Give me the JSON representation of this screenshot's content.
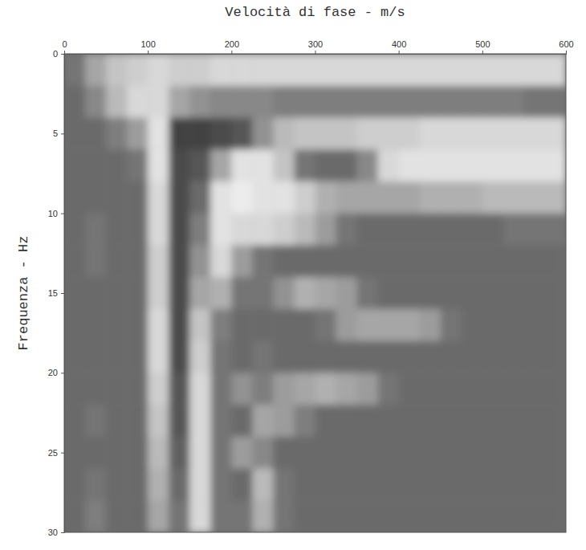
{
  "chart_data": {
    "type": "heatmap",
    "x_label": "Velocità di fase - m/s",
    "y_label": "Frequenza - Hz",
    "xlim": [
      0,
      600
    ],
    "ylim": [
      0,
      30
    ],
    "xticks": [
      0,
      100,
      200,
      300,
      400,
      500,
      600
    ],
    "yticks": [
      0,
      5,
      10,
      15,
      20,
      25,
      30
    ],
    "x_bins": [
      0,
      25,
      50,
      75,
      100,
      125,
      150,
      175,
      200,
      225,
      250,
      275,
      300,
      325,
      350,
      375,
      400,
      425,
      450,
      475,
      500,
      525,
      550,
      575,
      600
    ],
    "y_bins": [
      0,
      2,
      4,
      6,
      8,
      10,
      12,
      14,
      16,
      18,
      20,
      22,
      24,
      26,
      28,
      30
    ],
    "values": [
      [
        0.35,
        0.6,
        0.75,
        0.8,
        0.85,
        0.8,
        0.8,
        0.85,
        0.85,
        0.85,
        0.85,
        0.85,
        0.85,
        0.85,
        0.85,
        0.85,
        0.85,
        0.85,
        0.85,
        0.85,
        0.85,
        0.85,
        0.85,
        0.85
      ],
      [
        0.3,
        0.45,
        0.7,
        0.85,
        0.85,
        0.6,
        0.5,
        0.45,
        0.45,
        0.45,
        0.4,
        0.4,
        0.4,
        0.4,
        0.4,
        0.4,
        0.4,
        0.4,
        0.4,
        0.4,
        0.4,
        0.4,
        0.35,
        0.35
      ],
      [
        0.3,
        0.3,
        0.4,
        0.55,
        0.9,
        0.1,
        0.1,
        0.15,
        0.2,
        0.5,
        0.7,
        0.75,
        0.75,
        0.75,
        0.8,
        0.8,
        0.8,
        0.85,
        0.85,
        0.85,
        0.85,
        0.85,
        0.85,
        0.85
      ],
      [
        0.3,
        0.3,
        0.3,
        0.35,
        0.9,
        0.15,
        0.2,
        0.6,
        0.9,
        0.9,
        0.75,
        0.35,
        0.3,
        0.3,
        0.45,
        0.85,
        0.9,
        0.9,
        0.9,
        0.9,
        0.9,
        0.9,
        0.9,
        0.9
      ],
      [
        0.3,
        0.3,
        0.3,
        0.3,
        0.85,
        0.15,
        0.3,
        0.9,
        0.95,
        0.9,
        0.9,
        0.8,
        0.65,
        0.6,
        0.6,
        0.6,
        0.6,
        0.65,
        0.65,
        0.65,
        0.7,
        0.7,
        0.7,
        0.7
      ],
      [
        0.3,
        0.35,
        0.3,
        0.3,
        0.85,
        0.15,
        0.4,
        0.9,
        0.85,
        0.85,
        0.8,
        0.7,
        0.55,
        0.35,
        0.3,
        0.3,
        0.3,
        0.3,
        0.3,
        0.3,
        0.3,
        0.35,
        0.35,
        0.35
      ],
      [
        0.3,
        0.35,
        0.3,
        0.3,
        0.8,
        0.15,
        0.5,
        0.85,
        0.55,
        0.35,
        0.3,
        0.3,
        0.3,
        0.3,
        0.3,
        0.3,
        0.3,
        0.3,
        0.3,
        0.3,
        0.3,
        0.3,
        0.3,
        0.3
      ],
      [
        0.3,
        0.3,
        0.3,
        0.3,
        0.8,
        0.15,
        0.6,
        0.65,
        0.35,
        0.35,
        0.5,
        0.65,
        0.6,
        0.55,
        0.35,
        0.3,
        0.3,
        0.3,
        0.3,
        0.3,
        0.3,
        0.3,
        0.3,
        0.3
      ],
      [
        0.3,
        0.3,
        0.3,
        0.3,
        0.85,
        0.15,
        0.75,
        0.4,
        0.3,
        0.3,
        0.3,
        0.3,
        0.35,
        0.55,
        0.6,
        0.6,
        0.6,
        0.55,
        0.35,
        0.3,
        0.3,
        0.3,
        0.3,
        0.3
      ],
      [
        0.3,
        0.3,
        0.3,
        0.3,
        0.85,
        0.15,
        0.8,
        0.35,
        0.3,
        0.35,
        0.3,
        0.3,
        0.3,
        0.3,
        0.3,
        0.3,
        0.3,
        0.3,
        0.3,
        0.3,
        0.3,
        0.3,
        0.3,
        0.3
      ],
      [
        0.3,
        0.3,
        0.3,
        0.3,
        0.8,
        0.2,
        0.85,
        0.35,
        0.5,
        0.4,
        0.55,
        0.6,
        0.65,
        0.6,
        0.55,
        0.35,
        0.3,
        0.3,
        0.3,
        0.3,
        0.3,
        0.3,
        0.3,
        0.3
      ],
      [
        0.3,
        0.35,
        0.3,
        0.3,
        0.75,
        0.2,
        0.85,
        0.35,
        0.3,
        0.6,
        0.55,
        0.4,
        0.3,
        0.3,
        0.3,
        0.3,
        0.3,
        0.3,
        0.3,
        0.3,
        0.3,
        0.3,
        0.3,
        0.3
      ],
      [
        0.3,
        0.3,
        0.3,
        0.3,
        0.7,
        0.25,
        0.85,
        0.35,
        0.55,
        0.45,
        0.3,
        0.3,
        0.3,
        0.3,
        0.3,
        0.3,
        0.3,
        0.3,
        0.3,
        0.3,
        0.3,
        0.3,
        0.3,
        0.3
      ],
      [
        0.3,
        0.35,
        0.3,
        0.3,
        0.65,
        0.3,
        0.85,
        0.35,
        0.3,
        0.7,
        0.35,
        0.3,
        0.3,
        0.3,
        0.3,
        0.3,
        0.3,
        0.3,
        0.3,
        0.3,
        0.3,
        0.3,
        0.3,
        0.3
      ],
      [
        0.3,
        0.4,
        0.3,
        0.3,
        0.6,
        0.35,
        0.85,
        0.35,
        0.35,
        0.65,
        0.35,
        0.3,
        0.3,
        0.3,
        0.3,
        0.3,
        0.3,
        0.3,
        0.3,
        0.3,
        0.3,
        0.3,
        0.3,
        0.3
      ]
    ]
  }
}
